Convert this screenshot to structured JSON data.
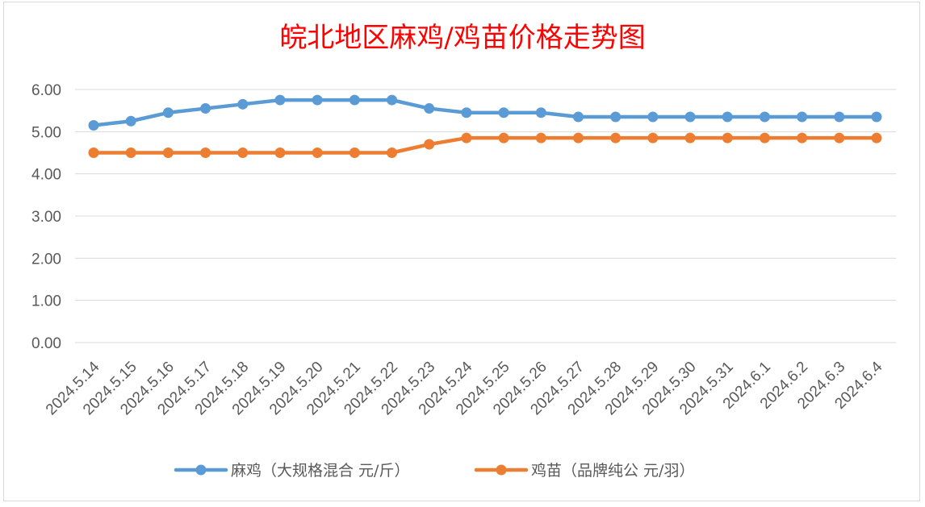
{
  "chart_data": {
    "type": "line",
    "title": "皖北地区麻鸡/鸡苗价格走势图",
    "xlabel": "",
    "ylabel": "",
    "categories": [
      "2024.5.14",
      "2024.5.15",
      "2024.5.16",
      "2024.5.17",
      "2024.5.18",
      "2024.5.19",
      "2024.5.20",
      "2024.5.21",
      "2024.5.22",
      "2024.5.23",
      "2024.5.24",
      "2024.5.25",
      "2024.5.26",
      "2024.5.27",
      "2024.5.28",
      "2024.5.29",
      "2024.5.30",
      "2024.5.31",
      "2024.6.1",
      "2024.6.2",
      "2024.6.3",
      "2024.6.4"
    ],
    "y_ticks": [
      "0.00",
      "1.00",
      "2.00",
      "3.00",
      "4.00",
      "5.00",
      "6.00"
    ],
    "ylim": [
      0,
      6
    ],
    "grid": true,
    "legend_position": "bottom",
    "series": [
      {
        "name": "麻鸡（大规格混合 元/斤）",
        "color": "#5b9bd5",
        "values": [
          5.15,
          5.25,
          5.45,
          5.55,
          5.65,
          5.75,
          5.75,
          5.75,
          5.75,
          5.55,
          5.45,
          5.45,
          5.45,
          5.35,
          5.35,
          5.35,
          5.35,
          5.35,
          5.35,
          5.35,
          5.35,
          5.35
        ]
      },
      {
        "name": "鸡苗（品牌纯公 元/羽）",
        "color": "#ed7d31",
        "values": [
          4.5,
          4.5,
          4.5,
          4.5,
          4.5,
          4.5,
          4.5,
          4.5,
          4.5,
          4.7,
          4.85,
          4.85,
          4.85,
          4.85,
          4.85,
          4.85,
          4.85,
          4.85,
          4.85,
          4.85,
          4.85,
          4.85
        ]
      }
    ]
  }
}
